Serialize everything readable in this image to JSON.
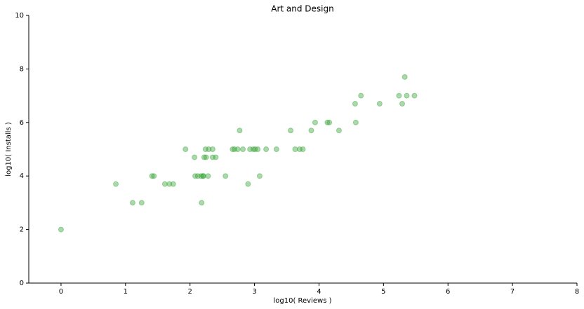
{
  "chart_data": {
    "type": "scatter",
    "title": "Art and Design",
    "x_label": "log10( Reviews )",
    "y_label": "log10( Installs )",
    "color": "#2ca02c",
    "alpha": 0.4,
    "grid": false,
    "xlim": [
      -0.5,
      8
    ],
    "ylim": [
      0,
      10
    ],
    "xticks": [
      0,
      1,
      2,
      3,
      4,
      5,
      6,
      7,
      8
    ],
    "yticks": [
      0,
      2,
      4,
      6,
      8,
      10
    ],
    "x": [
      0,
      0.85,
      1.11,
      1.25,
      1.41,
      1.44,
      1.61,
      1.68,
      1.74,
      1.93,
      2.07,
      2.08,
      2.12,
      2.17,
      2.18,
      2.2,
      2.21,
      2.22,
      2.24,
      2.25,
      2.28,
      2.29,
      2.35,
      2.35,
      2.4,
      2.55,
      2.66,
      2.69,
      2.74,
      2.77,
      2.82,
      2.9,
      2.93,
      2.98,
      3.01,
      3.05,
      3.08,
      3.18,
      3.34,
      3.56,
      3.63,
      3.7,
      3.75,
      3.88,
      3.94,
      4.13,
      4.16,
      4.31,
      4.56,
      4.57,
      4.65,
      4.94,
      5.24,
      5.29,
      5.33,
      5.36,
      5.48
    ],
    "y": [
      2.0,
      3.7,
      3.0,
      3.0,
      4.0,
      4.0,
      3.7,
      3.7,
      3.7,
      5.0,
      4.7,
      4.0,
      4.0,
      4.0,
      3.0,
      4.0,
      4.0,
      4.7,
      5.0,
      4.7,
      4.0,
      5.0,
      5.0,
      4.7,
      4.7,
      4.0,
      5.0,
      5.0,
      5.0,
      5.7,
      5.0,
      3.7,
      5.0,
      5.0,
      5.0,
      5.0,
      4.0,
      5.0,
      5.0,
      5.7,
      5.0,
      5.0,
      5.0,
      5.7,
      6.0,
      6.0,
      6.0,
      5.7,
      6.7,
      6.0,
      7.0,
      6.7,
      7.0,
      6.7,
      7.7,
      7.0,
      7.0
    ]
  }
}
